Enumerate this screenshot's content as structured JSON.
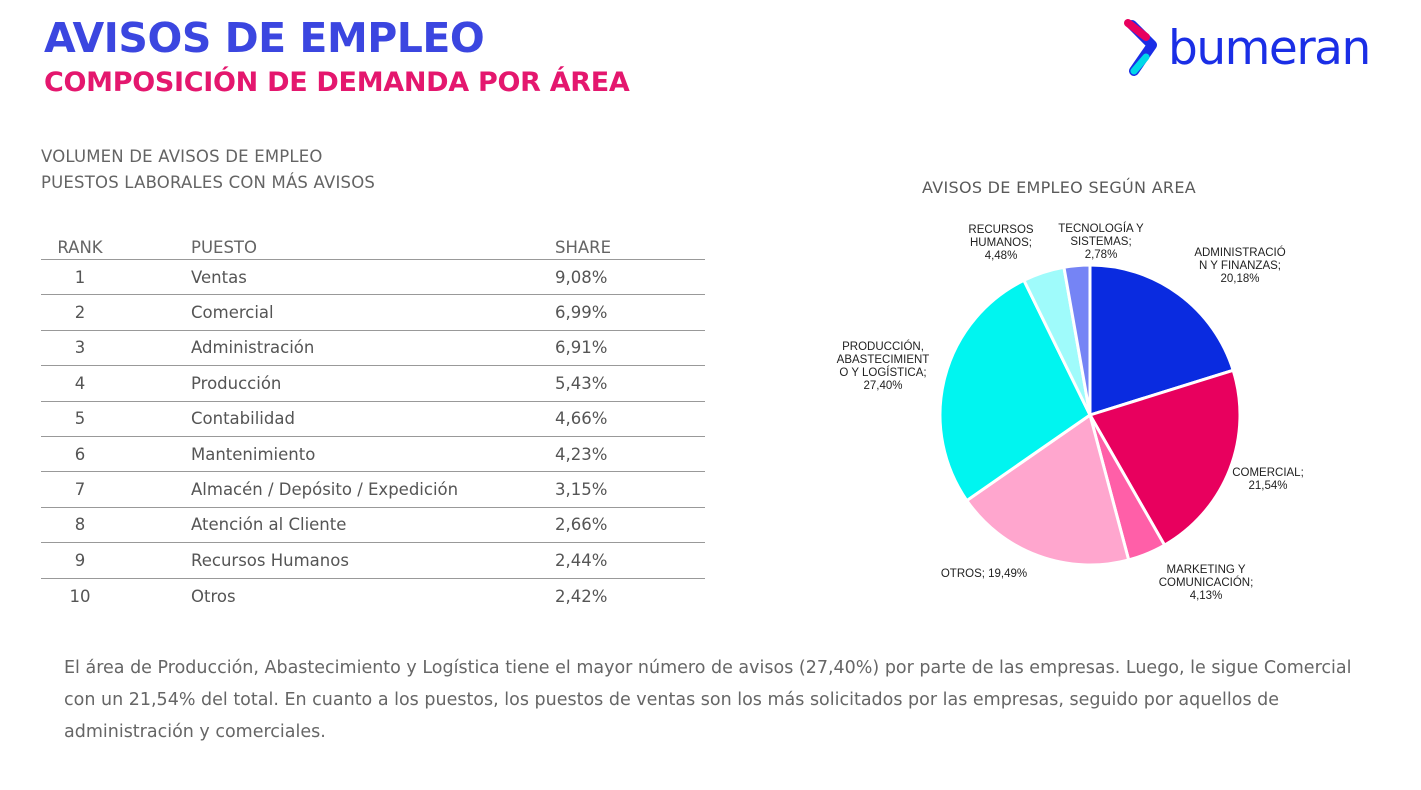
{
  "header": {
    "title": "AVISOS DE EMPLEO",
    "subtitle": "COMPOSICIÓN DE DEMANDA POR ÁREA"
  },
  "logo": {
    "text": "bumeran",
    "icon": "bumeran-logo-icon"
  },
  "table_section": {
    "title_line1": "VOLUMEN DE AVISOS DE EMPLEO",
    "title_line2": "PUESTOS LABORALES CON MÁS AVISOS"
  },
  "table": {
    "headers": {
      "rank": "RANK",
      "job": "PUESTO",
      "share": "SHARE"
    },
    "rows": [
      {
        "rank": "1",
        "job": "Ventas",
        "share": "9,08%"
      },
      {
        "rank": "2",
        "job": "Comercial",
        "share": "6,99%"
      },
      {
        "rank": "3",
        "job": "Administración",
        "share": "6,91%"
      },
      {
        "rank": "4",
        "job": "Producción",
        "share": "5,43%"
      },
      {
        "rank": "5",
        "job": "Contabilidad",
        "share": "4,66%"
      },
      {
        "rank": "6",
        "job": "Mantenimiento",
        "share": "4,23%"
      },
      {
        "rank": "7",
        "job": "Almacén / Depósito / Expedición",
        "share": "3,15%"
      },
      {
        "rank": "8",
        "job": "Atención al Cliente",
        "share": "2,66%"
      },
      {
        "rank": "9",
        "job": "Recursos Humanos",
        "share": "2,44%"
      },
      {
        "rank": "10",
        "job": "Otros",
        "share": "2,42%"
      }
    ]
  },
  "chart_data": {
    "type": "pie",
    "title": "AVISOS DE EMPLEO SEGÚN AREA",
    "slices": [
      {
        "name": "Administración y Finanzas",
        "label_lines": [
          "ADMINISTRACIÓ",
          "N Y FINANZAS;",
          "20,18%"
        ],
        "value": 20.18,
        "color": "#0a2be0"
      },
      {
        "name": "Comercial",
        "label_lines": [
          "COMERCIAL;",
          "21,54%"
        ],
        "value": 21.54,
        "color": "#e8005e"
      },
      {
        "name": "Marketing y Comunicación",
        "label_lines": [
          "MARKETING Y",
          "COMUNICACIÓN;",
          "4,13%"
        ],
        "value": 4.13,
        "color": "#ff5fa8"
      },
      {
        "name": "Otros",
        "label_lines": [
          "OTROS; 19,49%"
        ],
        "value": 19.49,
        "color": "#ffa6ce"
      },
      {
        "name": "Producción, Abastecimiento y Logística",
        "label_lines": [
          "PRODUCCIÓN,",
          "ABASTECIMIENT",
          "O Y LOGÍSTICA;",
          "27,40%"
        ],
        "value": 27.4,
        "color": "#00f5f0"
      },
      {
        "name": "Recursos Humanos",
        "label_lines": [
          "RECURSOS",
          "HUMANOS;",
          "4,48%"
        ],
        "value": 4.48,
        "color": "#9ffbfb"
      },
      {
        "name": "Tecnología y Sistemas",
        "label_lines": [
          "TECNOLOGÍA Y",
          "SISTEMAS;",
          "2,78%"
        ],
        "value": 2.78,
        "color": "#7584f5"
      }
    ]
  },
  "footer": {
    "text": "El área de Producción, Abastecimiento y Logística tiene el mayor número de avisos (27,40%) por parte de las empresas. Luego, le sigue Comercial con un 21,54% del total. En cuanto a los puestos, los puestos de ventas son los más solicitados por las empresas, seguido por aquellos de administración y comerciales."
  }
}
